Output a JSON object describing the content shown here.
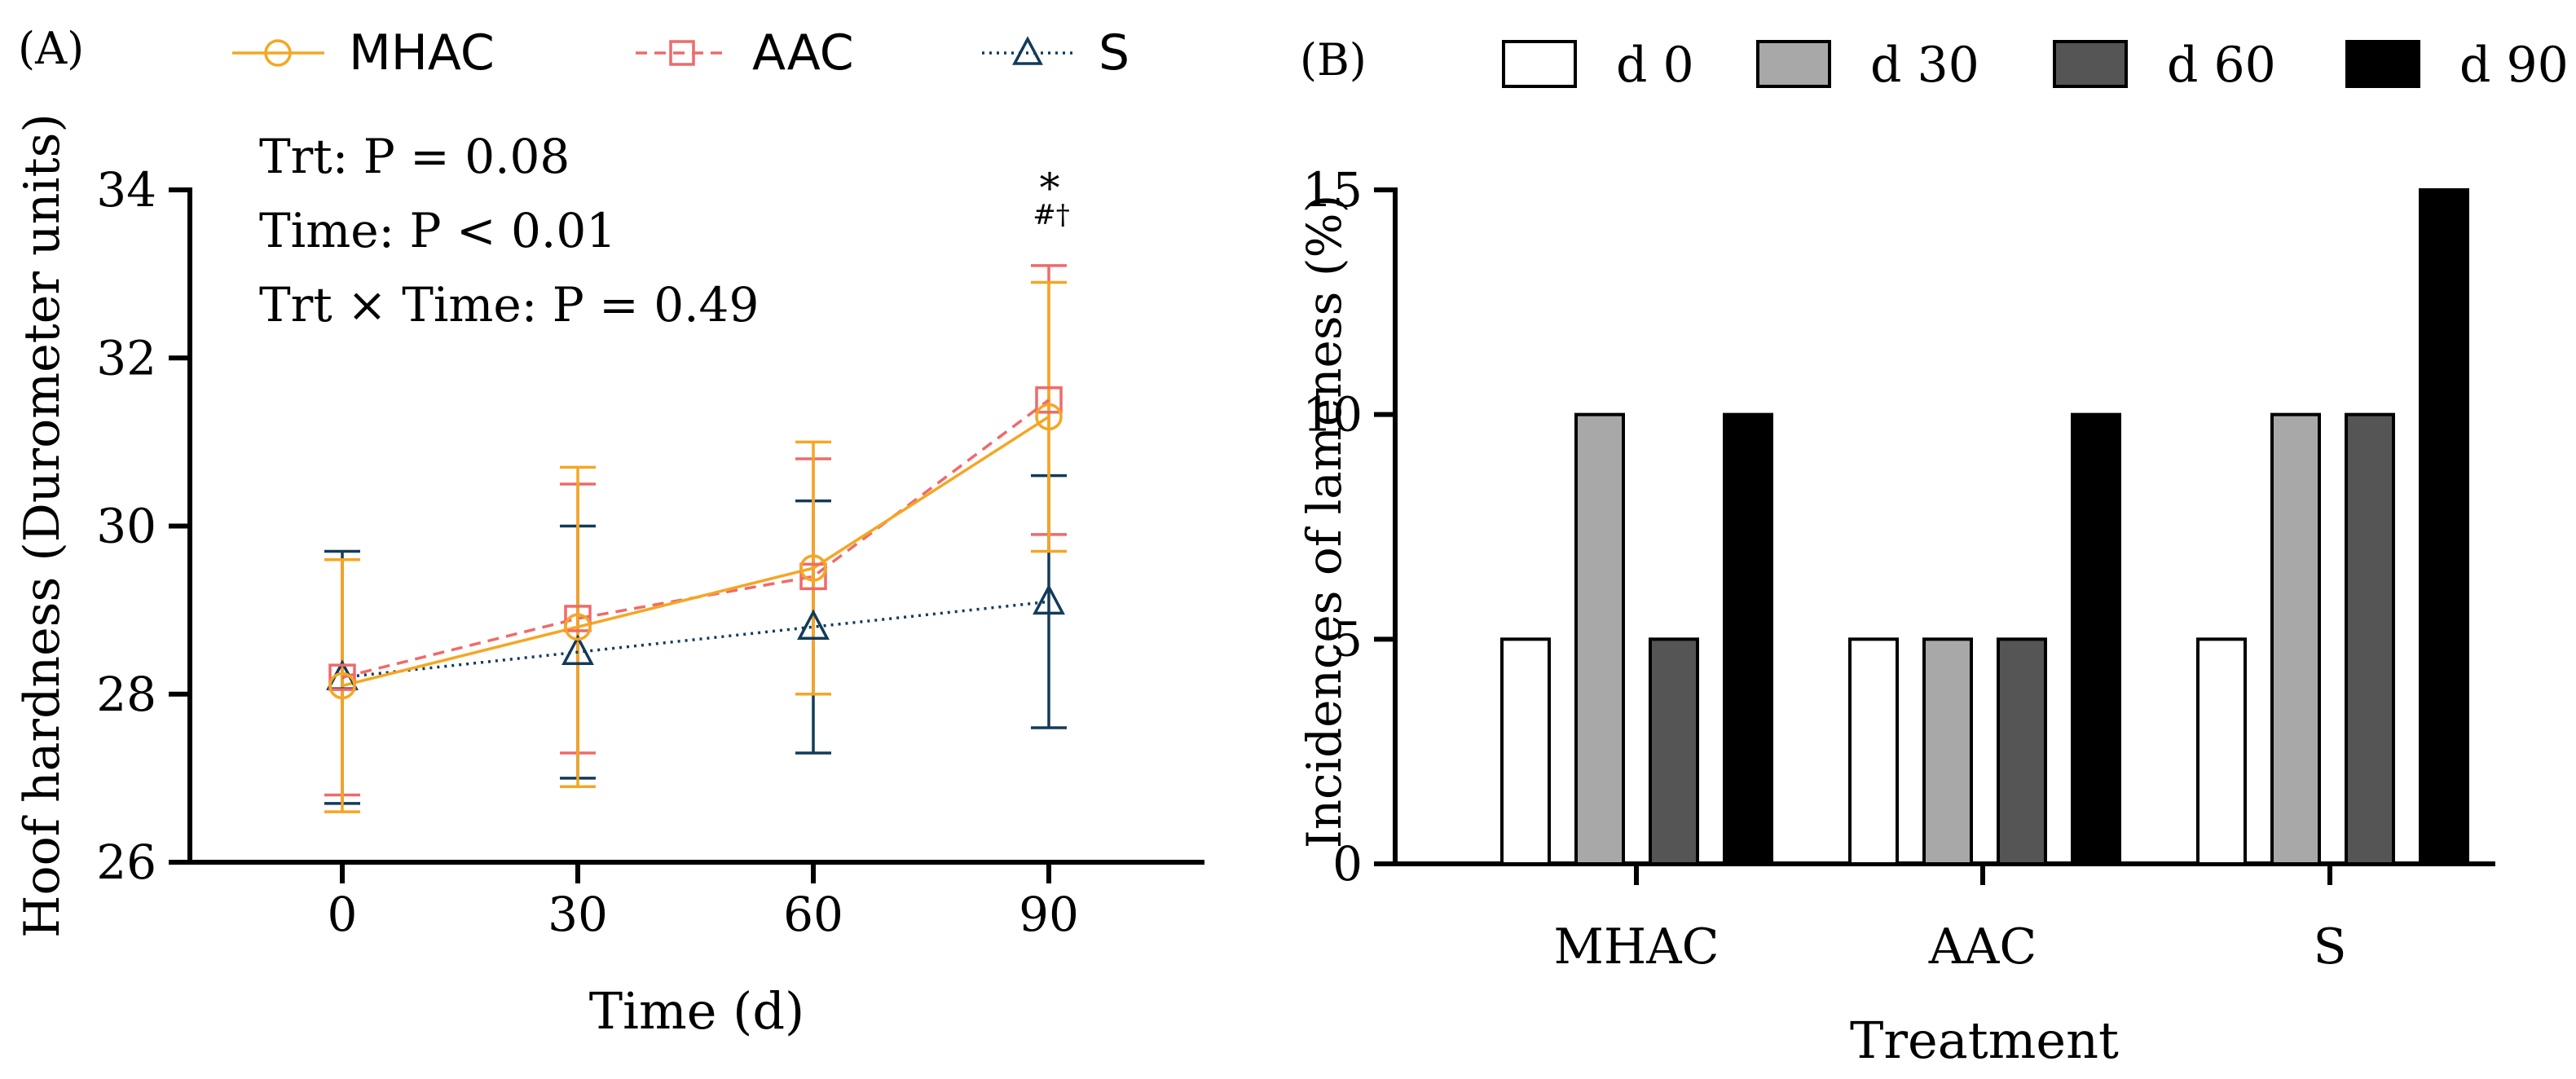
{
  "chart_data": [
    {
      "panel": "(A)",
      "type": "line",
      "xlabel": "Time (d)",
      "ylabel": "Hoof hardness (Durometer units)",
      "x": [
        0,
        30,
        60,
        90
      ],
      "x_ticks": [
        "0",
        "30",
        "60",
        "90"
      ],
      "ylim": [
        26,
        34
      ],
      "y_ticks": [
        26,
        28,
        30,
        32,
        34
      ],
      "grid": false,
      "legend_position": "top",
      "series": [
        {
          "name": "MHAC",
          "marker": "circle",
          "line": "solid",
          "color": "#F5A623",
          "values": [
            28.1,
            28.8,
            29.5,
            31.3
          ],
          "err_low": [
            26.6,
            26.9,
            28.0,
            29.7
          ],
          "err_high": [
            29.6,
            30.7,
            31.0,
            32.9
          ]
        },
        {
          "name": "AAC",
          "marker": "square",
          "line": "dashed",
          "color": "#EF6A6A",
          "values": [
            28.2,
            28.9,
            29.4,
            31.5
          ],
          "err_low": [
            26.8,
            27.3,
            28.0,
            29.9
          ],
          "err_high": [
            29.6,
            30.5,
            30.8,
            33.1
          ]
        },
        {
          "name": "S",
          "marker": "triangle",
          "line": "dotted",
          "color": "#123B5A",
          "values": [
            28.2,
            28.5,
            28.8,
            29.1
          ],
          "err_low": [
            26.7,
            27.0,
            27.3,
            27.6
          ],
          "err_high": [
            29.7,
            30.0,
            30.3,
            30.6
          ]
        }
      ],
      "stats": [
        "Trt: P = 0.08",
        "Time: P < 0.01",
        "Trt × Time: P = 0.49"
      ],
      "annotations": {
        "at_x": 90,
        "top": "*",
        "bottom": "#†"
      }
    },
    {
      "panel": "(B)",
      "type": "bar",
      "xlabel": "Treatment",
      "ylabel": "Incidences of  lameness (%)",
      "categories": [
        "MHAC",
        "AAC",
        "S"
      ],
      "ylim": [
        0,
        15
      ],
      "y_ticks": [
        0,
        5,
        10,
        15
      ],
      "grid": false,
      "legend_position": "top",
      "series": [
        {
          "name": "d 0",
          "color": "#FFFFFF",
          "values": [
            5,
            5,
            5
          ]
        },
        {
          "name": "d 30",
          "color": "#A8A8A8",
          "values": [
            10,
            5,
            10
          ]
        },
        {
          "name": "d 60",
          "color": "#555555",
          "values": [
            5,
            5,
            10
          ]
        },
        {
          "name": "d 90",
          "color": "#000000",
          "values": [
            10,
            10,
            15
          ]
        }
      ]
    }
  ]
}
